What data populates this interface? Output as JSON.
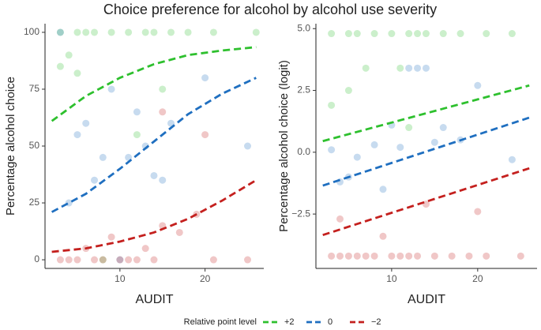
{
  "title": "Choice preference for alcohol by alcohol use severity",
  "legend": {
    "title": "Relative point level",
    "entries": [
      {
        "name": "+2",
        "color": "#2ec02e"
      },
      {
        "name": "0",
        "color": "#1f6fc0"
      },
      {
        "name": "−2",
        "color": "#c4201e"
      }
    ]
  },
  "chart_data": [
    {
      "type": "scatter",
      "x_label": "AUDIT",
      "y_label": "Percentage alcohol choice",
      "xlim": [
        1.2,
        26.9
      ],
      "ylim": [
        -3.8,
        103.8
      ],
      "xticks": [
        10,
        20
      ],
      "yticks": [
        0,
        25,
        50,
        75,
        100
      ],
      "series": [
        {
          "points": {
            "x": [
              3,
              5,
              6,
              7,
              9,
              11,
              13,
              14,
              16,
              18,
              21,
              26,
              4,
              5,
              12,
              3,
              8,
              15
            ],
            "y": [
              100,
              100,
              100,
              100,
              100,
              100,
              100,
              100,
              100,
              100,
              100,
              100,
              90,
              82,
              55,
              85,
              0,
              75
            ]
          },
          "fit": {
            "x": [
              2,
              6,
              10,
              14,
              18,
              22,
              26
            ],
            "y": [
              61,
              72,
              80,
              86,
              90,
              92,
              93.5
            ]
          }
        },
        {
          "points": {
            "x": [
              3,
              5,
              6,
              8,
              9,
              11,
              12,
              13,
              14,
              15,
              16,
              20,
              25,
              4,
              10,
              7
            ],
            "y": [
              100,
              55,
              60,
              45,
              75,
              45,
              65,
              50,
              37,
              35,
              60,
              80,
              50,
              25,
              0,
              35
            ]
          },
          "fit": {
            "x": [
              2,
              6,
              10,
              14,
              18,
              22,
              26
            ],
            "y": [
              21,
              29,
              40,
              52,
              64,
              73,
              80
            ]
          }
        },
        {
          "points": {
            "x": [
              3,
              4,
              5,
              6,
              8,
              9,
              10,
              11,
              12,
              13,
              15,
              17,
              19,
              21,
              25,
              7,
              14,
              15,
              20
            ],
            "y": [
              0,
              0,
              0,
              5,
              0,
              10,
              0,
              0,
              0,
              5,
              15,
              12,
              20,
              0,
              0,
              0,
              0,
              65,
              55
            ]
          },
          "fit": {
            "x": [
              2,
              6,
              10,
              14,
              18,
              22,
              26
            ],
            "y": [
              3.5,
              5,
              8,
              12,
              18,
              26,
              35
            ]
          }
        }
      ]
    },
    {
      "type": "scatter",
      "x_label": "AUDIT",
      "y_label": "Percentage alcohol choice (logit)",
      "xlim": [
        1.2,
        26.9
      ],
      "ylim": [
        -4.7,
        5.2
      ],
      "xticks": [
        10,
        20
      ],
      "yticks": [
        {
          "value": -2.5,
          "label": "−2.5"
        },
        {
          "value": 0,
          "label": "0.0"
        },
        {
          "value": 2.5,
          "label": "2.5"
        },
        {
          "value": 5,
          "label": "5.0"
        }
      ],
      "series": [
        {
          "points": {
            "x": [
              3,
              5,
              6,
              8,
              10,
              12,
              13,
              14,
              16,
              18,
              21,
              24,
              3,
              5,
              11,
              7,
              12
            ],
            "y": [
              4.8,
              4.8,
              4.8,
              4.8,
              4.8,
              4.8,
              4.8,
              4.8,
              4.8,
              4.8,
              4.8,
              4.8,
              1.9,
              2.5,
              3.4,
              3.4,
              1.0
            ]
          },
          "fit": {
            "x": [
              2,
              26
            ],
            "y": [
              0.45,
              2.7
            ]
          }
        },
        {
          "points": {
            "x": [
              3,
              4,
              6,
              8,
              10,
              11,
              12,
              13,
              14,
              16,
              18,
              20,
              24,
              5,
              9,
              15
            ],
            "y": [
              0.1,
              -1.2,
              -0.2,
              0.3,
              1.1,
              0.2,
              3.4,
              3.4,
              3.4,
              1.0,
              0.5,
              2.7,
              -0.3,
              -1.0,
              -1.5,
              0.4
            ]
          },
          "fit": {
            "x": [
              2,
              26
            ],
            "y": [
              -1.35,
              1.4
            ]
          }
        },
        {
          "points": {
            "x": [
              3,
              4,
              5,
              6,
              7,
              8,
              10,
              11,
              12,
              13,
              15,
              17,
              19,
              21,
              25,
              4,
              9,
              14,
              20
            ],
            "y": [
              -4.2,
              -4.2,
              -4.2,
              -4.2,
              -4.2,
              -4.2,
              -4.2,
              -4.2,
              -4.2,
              -4.2,
              -4.2,
              -4.2,
              -4.2,
              -4.2,
              -4.2,
              -2.7,
              -3.4,
              -2.1,
              -2.4
            ]
          },
          "fit": {
            "x": [
              2,
              26
            ],
            "y": [
              -3.35,
              -0.65
            ]
          }
        }
      ]
    }
  ]
}
